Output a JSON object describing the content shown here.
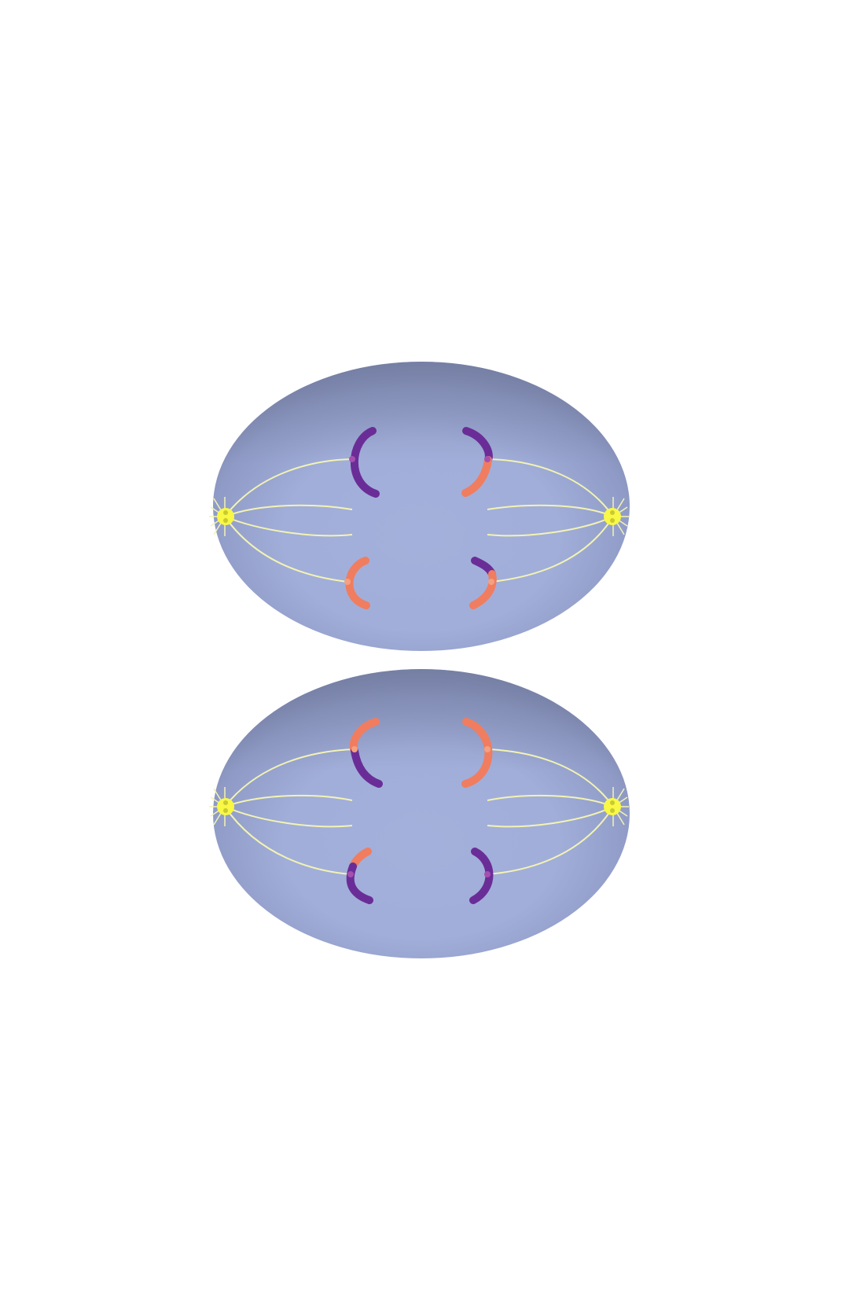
{
  "colors": {
    "background": "#ffffff",
    "cell_fill_center": "#a3b0db",
    "cell_fill_top": "#8089b0",
    "cell_outline": "#6f79a3",
    "spindle_fiber": "#f3f3b2",
    "centrosome": "#f8f845",
    "centrosome_ray": "#f3f3b2",
    "maternal_chromosome": "#6a2d97",
    "paternal_chromosome": "#f07d5f"
  },
  "legend_note": "",
  "cells": [
    {
      "id": "cell-top",
      "chromosome_pairs": [
        {
          "position": "upper",
          "left_segments": [
            "maternal"
          ],
          "right_segments": [
            "maternal",
            "paternal"
          ]
        },
        {
          "position": "lower",
          "left_segments": [
            "paternal"
          ],
          "right_segments": [
            "maternal",
            "paternal"
          ]
        }
      ]
    },
    {
      "id": "cell-bottom",
      "chromosome_pairs": [
        {
          "position": "upper",
          "left_segments": [
            "paternal",
            "maternal"
          ],
          "right_segments": [
            "paternal"
          ]
        },
        {
          "position": "lower",
          "left_segments": [
            "paternal",
            "maternal"
          ],
          "right_segments": [
            "maternal"
          ]
        }
      ]
    }
  ]
}
